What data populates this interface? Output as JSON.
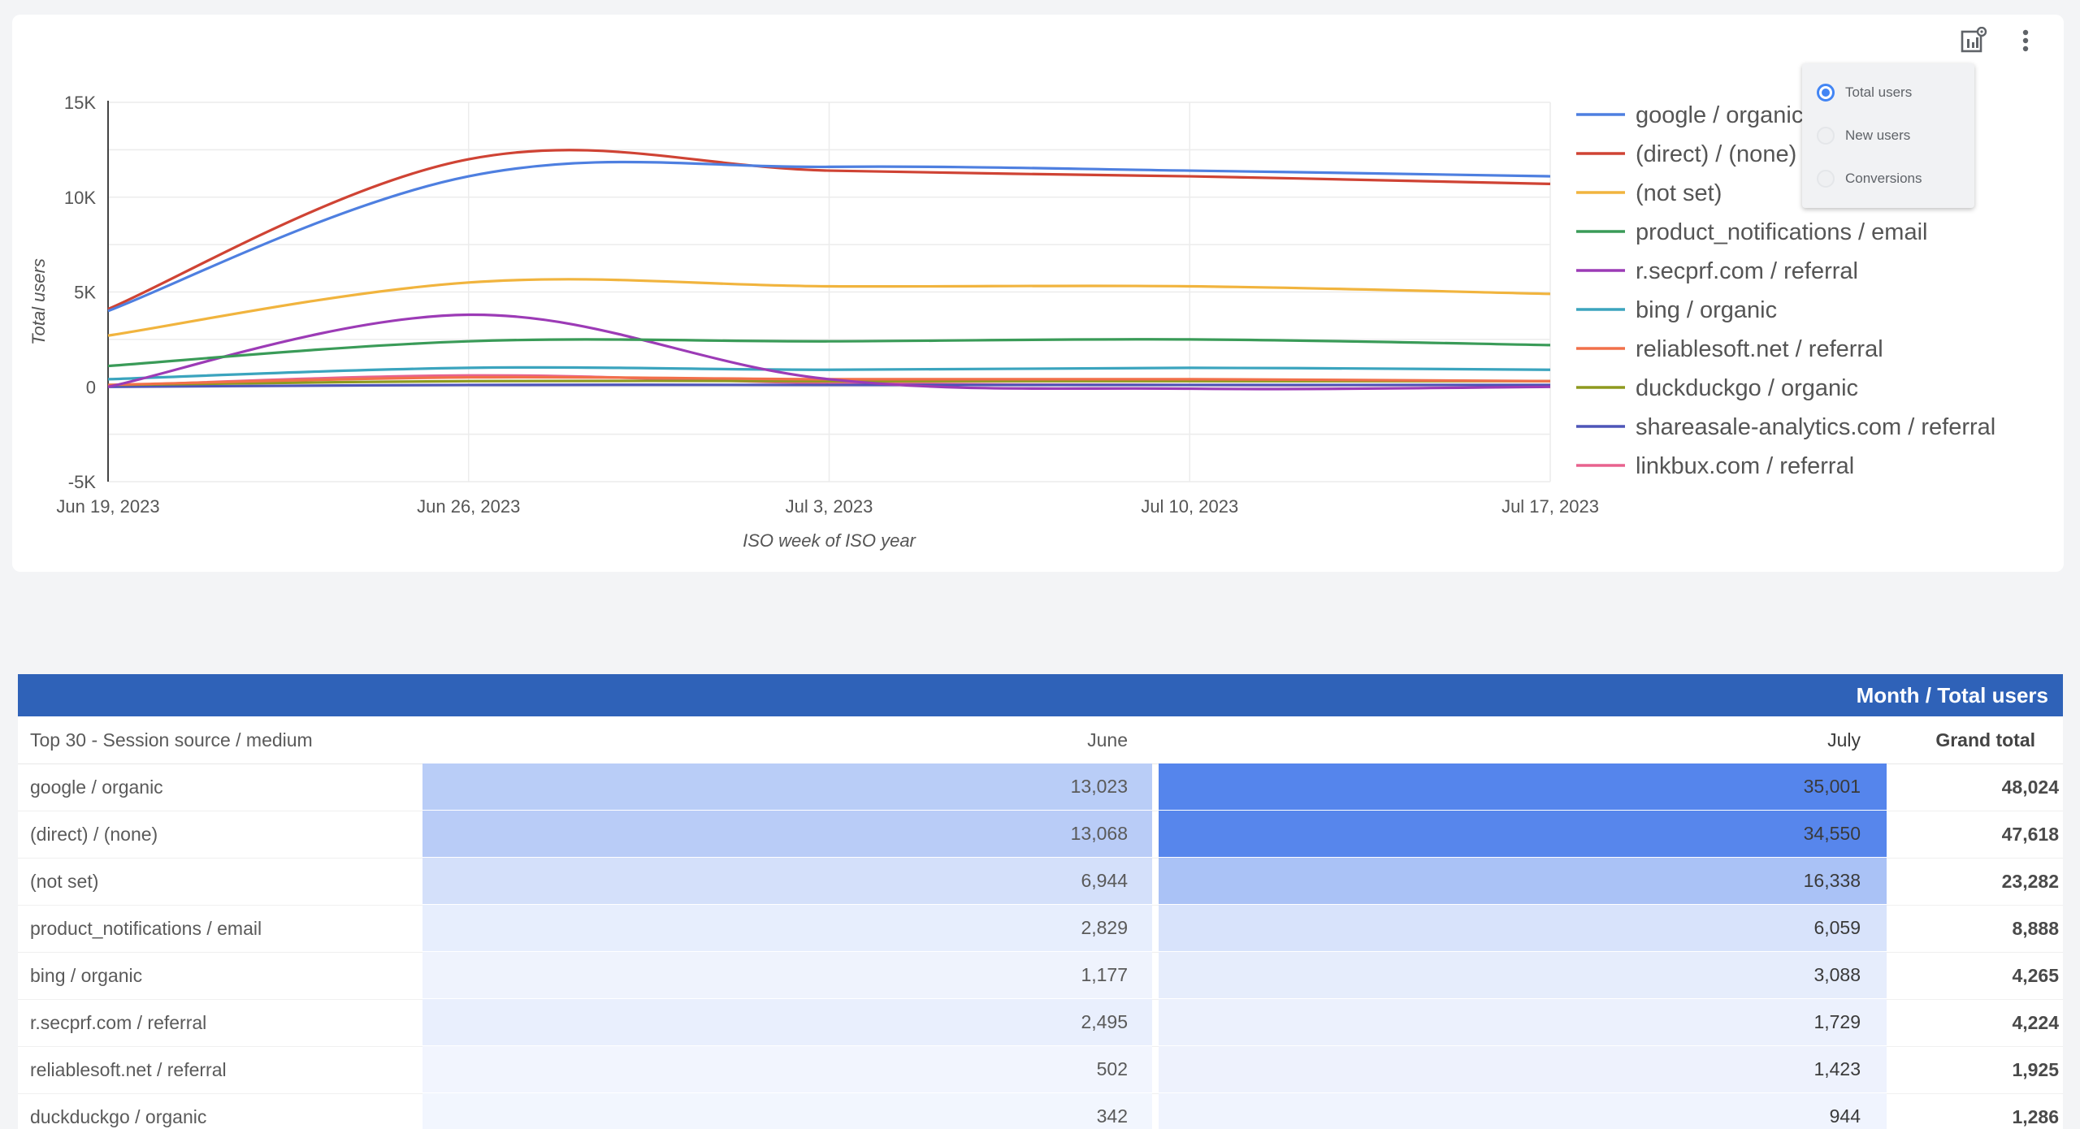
{
  "toolbar": {
    "chart_settings_icon": "chart-settings-icon",
    "more_icon": "more-vert-icon"
  },
  "metric_menu": {
    "options": [
      {
        "label": "Total users",
        "selected": true
      },
      {
        "label": "New users",
        "selected": false
      },
      {
        "label": "Conversions",
        "selected": false
      }
    ]
  },
  "chart_data": {
    "type": "line",
    "x": [
      "Jun 19, 2023",
      "Jun 26, 2023",
      "Jul 3, 2023",
      "Jul 10, 2023",
      "Jul 17, 2023"
    ],
    "xlabel": "ISO week of ISO year",
    "ylabel": "Total users",
    "ylim": [
      -5000,
      15000
    ],
    "yticks": [
      -5000,
      0,
      5000,
      10000,
      15000
    ],
    "ytick_labels": [
      "-5K",
      "0",
      "5K",
      "10K",
      "15K"
    ],
    "grid": true,
    "legend": "right",
    "series": [
      {
        "name": "google / organic",
        "color": "#4e7fe0",
        "values": [
          4000,
          11100,
          11600,
          11400,
          11100
        ]
      },
      {
        "name": "(direct) / (none)",
        "color": "#cf4334",
        "values": [
          4100,
          12000,
          11400,
          11100,
          10700
        ]
      },
      {
        "name": "(not set)",
        "color": "#f1b43e",
        "values": [
          2700,
          5500,
          5300,
          5300,
          4900
        ]
      },
      {
        "name": "product_notifications / email",
        "color": "#3a9b58",
        "values": [
          1100,
          2400,
          2400,
          2500,
          2200
        ]
      },
      {
        "name": "r.secprf.com / referral",
        "color": "#9c3bb6",
        "values": [
          0,
          3800,
          400,
          -100,
          0
        ]
      },
      {
        "name": "bing / organic",
        "color": "#3ba4be",
        "values": [
          400,
          1000,
          900,
          1000,
          900
        ]
      },
      {
        "name": "reliablesoft.net / referral",
        "color": "#f1704a",
        "values": [
          100,
          500,
          400,
          400,
          300
        ]
      },
      {
        "name": "duckduckgo / organic",
        "color": "#8e9a1f",
        "values": [
          100,
          300,
          300,
          300,
          300
        ]
      },
      {
        "name": "shareasale-analytics.com / referral",
        "color": "#4e55b8",
        "values": [
          0,
          100,
          100,
          100,
          100
        ]
      },
      {
        "name": "linkbux.com / referral",
        "color": "#e8628e",
        "values": [
          50,
          600,
          200,
          100,
          100
        ]
      }
    ]
  },
  "table": {
    "header_title": "Month / Total users",
    "columns": [
      "Top 30 - Session source / medium",
      "June",
      "July",
      "Grand total"
    ],
    "rows": [
      {
        "source": "google / organic",
        "june": "13,023",
        "july": "35,001",
        "total": "48,024",
        "june_value": 13023,
        "july_value": 35001
      },
      {
        "source": "(direct) / (none)",
        "june": "13,068",
        "july": "34,550",
        "total": "47,618",
        "june_value": 13068,
        "july_value": 34550
      },
      {
        "source": "(not set)",
        "june": "6,944",
        "july": "16,338",
        "total": "23,282",
        "june_value": 6944,
        "july_value": 16338
      },
      {
        "source": "product_notifications / email",
        "june": "2,829",
        "july": "6,059",
        "total": "8,888",
        "june_value": 2829,
        "july_value": 6059
      },
      {
        "source": "bing / organic",
        "june": "1,177",
        "july": "3,088",
        "total": "4,265",
        "june_value": 1177,
        "july_value": 3088
      },
      {
        "source": "r.secprf.com / referral",
        "june": "2,495",
        "july": "1,729",
        "total": "4,224",
        "june_value": 2495,
        "july_value": 1729
      },
      {
        "source": "reliablesoft.net / referral",
        "june": "502",
        "july": "1,423",
        "total": "1,925",
        "june_value": 502,
        "july_value": 1423
      },
      {
        "source": "duckduckgo / organic",
        "june": "342",
        "july": "944",
        "total": "1,286",
        "june_value": 342,
        "july_value": 944
      }
    ]
  }
}
